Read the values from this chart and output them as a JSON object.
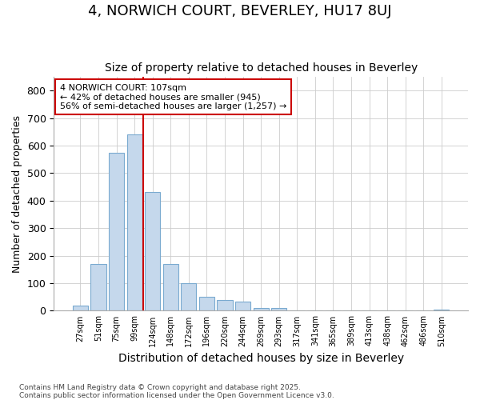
{
  "title": "4, NORWICH COURT, BEVERLEY, HU17 8UJ",
  "subtitle": "Size of property relative to detached houses in Beverley",
  "xlabel": "Distribution of detached houses by size in Beverley",
  "ylabel": "Number of detached properties",
  "footer_line1": "Contains HM Land Registry data © Crown copyright and database right 2025.",
  "footer_line2": "Contains public sector information licensed under the Open Government Licence v3.0.",
  "categories": [
    "27sqm",
    "51sqm",
    "75sqm",
    "99sqm",
    "124sqm",
    "148sqm",
    "172sqm",
    "196sqm",
    "220sqm",
    "244sqm",
    "269sqm",
    "293sqm",
    "317sqm",
    "341sqm",
    "365sqm",
    "389sqm",
    "413sqm",
    "438sqm",
    "462sqm",
    "486sqm",
    "510sqm"
  ],
  "values": [
    18,
    170,
    575,
    640,
    430,
    170,
    100,
    50,
    38,
    32,
    10,
    10,
    0,
    2,
    0,
    2,
    0,
    0,
    0,
    0,
    3
  ],
  "bar_color": "#c5d8ec",
  "bar_edge_color": "#7aaad0",
  "red_line_color": "#cc0000",
  "red_line_x": 3.5,
  "annotation_line1": "4 NORWICH COURT: 107sqm",
  "annotation_line2": "← 42% of detached houses are smaller (945)",
  "annotation_line3": "56% of semi-detached houses are larger (1,257) →",
  "ylim": [
    0,
    850
  ],
  "yticks": [
    0,
    100,
    200,
    300,
    400,
    500,
    600,
    700,
    800
  ],
  "grid_color": "#cccccc",
  "bg_color": "#ffffff",
  "title_fontsize": 13,
  "subtitle_fontsize": 10,
  "xlabel_fontsize": 10,
  "ylabel_fontsize": 9
}
